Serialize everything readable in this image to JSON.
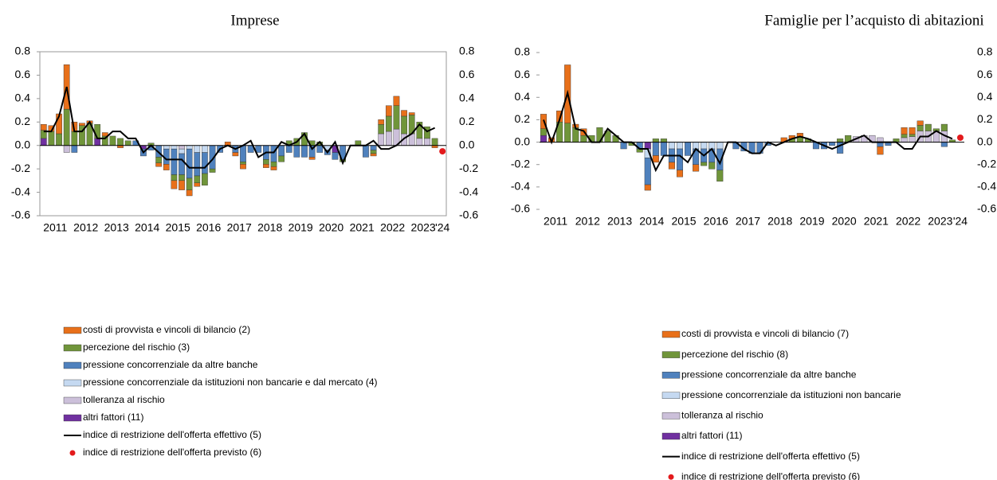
{
  "chart_data": [
    {
      "type": "bar",
      "title": "Imprese",
      "categories": [
        "2011",
        null,
        null,
        null,
        "2012",
        null,
        null,
        null,
        "2013",
        null,
        null,
        null,
        "2014",
        null,
        null,
        null,
        "2015",
        null,
        null,
        null,
        "2016",
        null,
        null,
        null,
        "2017",
        null,
        null,
        null,
        "2018",
        null,
        null,
        null,
        "2019",
        null,
        null,
        null,
        "2020",
        null,
        null,
        null,
        "2021",
        null,
        null,
        null,
        "2022",
        null,
        null,
        null,
        "2023",
        null,
        null,
        null,
        "'24"
      ],
      "ylim": [
        -0.6,
        0.8
      ],
      "yticks": [
        -0.6,
        -0.4,
        -0.2,
        {
          "value": 0,
          "label": "0.0"
        },
        0.2,
        0.4,
        0.6,
        0.8
      ],
      "series": [
        {
          "name": "costi di provvista e vincoli di bilancio (2)",
          "color": "#e8701a",
          "values": [
            0.05,
            0.05,
            0.17,
            0.38,
            0.08,
            0.02,
            0.02,
            0,
            0.03,
            0,
            -0.02,
            0,
            0,
            0,
            0,
            -0.03,
            -0.05,
            -0.07,
            -0.08,
            -0.05,
            -0.03,
            0,
            0,
            0,
            0.03,
            -0.03,
            -0.04,
            0,
            0,
            -0.03,
            -0.03,
            0,
            0,
            0,
            0,
            -0.02,
            0,
            0,
            0,
            0,
            0,
            0,
            0,
            -0.02,
            0.04,
            0.09,
            0.08,
            0.05,
            0.02,
            0,
            0,
            -0.02,
            0
          ]
        },
        {
          "name": "percezione del rischio (3)",
          "color": "#70953a",
          "values": [
            0.07,
            0.12,
            0.1,
            0.31,
            0.12,
            0.17,
            0.19,
            0.12,
            0.08,
            0.08,
            0.06,
            0.04,
            0,
            0,
            0.02,
            -0.05,
            0,
            -0.05,
            -0.05,
            -0.1,
            -0.06,
            -0.1,
            -0.03,
            0,
            0,
            0,
            -0.02,
            0,
            0,
            -0.04,
            -0.04,
            -0.05,
            0.04,
            0.06,
            0.11,
            0.04,
            0.03,
            0,
            0,
            -0.02,
            0,
            0.04,
            0,
            -0.03,
            0.08,
            0.13,
            0.2,
            0.15,
            0.16,
            0.14,
            0.1,
            0.06,
            0
          ]
        },
        {
          "name": "pressione concorrenziale da altre banche",
          "color": "#4f81bd",
          "values": [
            0,
            0,
            0,
            0,
            -0.06,
            0,
            0,
            0,
            0,
            0,
            0,
            0,
            0.04,
            -0.06,
            -0.04,
            -0.1,
            -0.13,
            -0.22,
            -0.18,
            -0.25,
            -0.2,
            -0.18,
            -0.2,
            -0.06,
            0,
            -0.06,
            -0.14,
            -0.06,
            -0.06,
            -0.12,
            -0.14,
            -0.09,
            -0.06,
            -0.1,
            -0.1,
            -0.1,
            -0.06,
            -0.04,
            -0.06,
            -0.12,
            0,
            0,
            -0.1,
            -0.04,
            0,
            0,
            0,
            0,
            0,
            0,
            0,
            0,
            0
          ]
        },
        {
          "name": "pressione concorrenziale da istituzioni non bancarie e dal mercato (4)",
          "color": "#c5d9f1",
          "values": [
            0,
            0,
            0,
            0,
            0,
            0,
            0,
            0,
            0,
            0,
            0,
            0,
            0,
            0,
            0,
            0,
            -0.03,
            -0.03,
            -0.04,
            -0.03,
            -0.06,
            -0.06,
            0,
            0,
            0,
            0,
            0,
            0,
            0,
            0,
            0,
            0,
            0,
            0,
            0,
            0,
            0,
            -0.04,
            0,
            0,
            0,
            0,
            0,
            0,
            0,
            0,
            0,
            0,
            0,
            0,
            0,
            0,
            0
          ]
        },
        {
          "name": "tolleranza al rischio",
          "color": "#ccc0da",
          "values": [
            0,
            0,
            0,
            -0.06,
            0,
            0,
            0,
            0,
            0,
            0,
            0,
            0,
            0,
            0,
            0,
            0,
            0,
            0,
            -0.03,
            0,
            0,
            0,
            0,
            0,
            0,
            0,
            0,
            0,
            0,
            0,
            0,
            0,
            0,
            0,
            0,
            0,
            0,
            0,
            0,
            0,
            0,
            0,
            0,
            0,
            0.1,
            0.12,
            0.14,
            0.1,
            0.1,
            0.06,
            0.06,
            0,
            0
          ]
        },
        {
          "name": "altri fattori (11)",
          "color": "#7030a0",
          "values": [
            0.06,
            0,
            0,
            0,
            0,
            0,
            0,
            0.06,
            0,
            0,
            0,
            0,
            0,
            -0.03,
            0,
            0,
            0,
            0,
            0,
            0,
            0,
            0,
            0,
            0,
            0,
            0,
            0,
            0,
            0,
            0,
            0,
            0,
            0,
            0,
            0,
            0,
            0,
            0,
            -0.06,
            0,
            0,
            0,
            0,
            0,
            0,
            0,
            0,
            0,
            0,
            0,
            0,
            0,
            0
          ]
        },
        {
          "type": "line",
          "name": "indice di restrizione dell'offerta effettivo (5)",
          "color": "#000000",
          "values": [
            0.12,
            0.12,
            0.25,
            0.5,
            0.12,
            0.12,
            0.2,
            0.06,
            0.06,
            0.12,
            0.12,
            0.06,
            0.06,
            -0.06,
            0,
            -0.06,
            -0.12,
            -0.12,
            -0.12,
            -0.19,
            -0.19,
            -0.19,
            -0.12,
            -0.03,
            0,
            -0.03,
            0,
            0.04,
            -0.1,
            -0.06,
            -0.06,
            0.03,
            0,
            0.03,
            0.1,
            -0.03,
            0.03,
            -0.06,
            0.03,
            -0.15,
            0,
            0,
            0,
            0.04,
            -0.03,
            -0.03,
            0,
            0.06,
            0.1,
            0.18,
            0.12,
            0.15,
            null
          ]
        }
      ],
      "forecast": {
        "name": "indice di restrizione dell'offerta previsto (6)",
        "color": "#e31a1c",
        "x": "'24",
        "value": -0.05
      }
    },
    {
      "type": "bar",
      "title": "Famiglie per l’acquisto di abitazioni",
      "categories": [
        "2011",
        null,
        null,
        null,
        "2012",
        null,
        null,
        null,
        "2013",
        null,
        null,
        null,
        "2014",
        null,
        null,
        null,
        "2015",
        null,
        null,
        null,
        "2016",
        null,
        null,
        null,
        "2017",
        null,
        null,
        null,
        "2018",
        null,
        null,
        null,
        "2019",
        null,
        null,
        null,
        "2020",
        null,
        null,
        null,
        "2021",
        null,
        null,
        null,
        "2022",
        null,
        null,
        null,
        "2023",
        null,
        null,
        null,
        "'24"
      ],
      "ylim": [
        -0.6,
        0.8
      ],
      "yticks": [
        -0.6,
        -0.4,
        -0.2,
        {
          "value": 0,
          "label": "0.0"
        },
        0.2,
        0.4,
        0.6,
        0.8
      ],
      "series": [
        {
          "name": "costi di provvista e vincoli di bilancio (7)",
          "color": "#e8701a",
          "values": [
            0.13,
            0.04,
            0.1,
            0.52,
            0.03,
            0.06,
            0,
            0,
            0,
            0,
            0,
            0,
            0,
            -0.05,
            -0.06,
            0,
            -0.06,
            -0.06,
            0,
            -0.06,
            0,
            0,
            0,
            0,
            0,
            0,
            0,
            0,
            0,
            0,
            0.04,
            0.03,
            0.03,
            0,
            0,
            0,
            0,
            0,
            0,
            0,
            0,
            0,
            -0.07,
            0,
            0,
            0.06,
            0.06,
            0.04,
            0,
            0,
            0,
            0,
            0
          ]
        },
        {
          "name": "percezione del rischio (8)",
          "color": "#70953a",
          "values": [
            0.06,
            0,
            0.18,
            0.17,
            0.13,
            0.06,
            0.06,
            0.13,
            0.1,
            0.06,
            0,
            -0.03,
            -0.03,
            0,
            0.03,
            0.03,
            0,
            0,
            0,
            0,
            -0.03,
            -0.06,
            -0.1,
            0,
            0,
            0,
            0,
            0,
            0,
            0,
            0,
            0.03,
            0.05,
            0.03,
            0,
            0,
            0,
            0.03,
            0.06,
            0,
            0,
            0,
            0,
            0,
            0.03,
            0.03,
            0.02,
            0.05,
            0.06,
            0.02,
            0.06,
            0.02,
            0
          ]
        },
        {
          "name": "pressione concorrenziale da altre banche",
          "color": "#4f81bd",
          "values": [
            0,
            0,
            0,
            0,
            0,
            0,
            0,
            0,
            0,
            0,
            -0.06,
            0,
            -0.06,
            -0.24,
            -0.12,
            -0.12,
            -0.12,
            -0.19,
            -0.12,
            -0.14,
            -0.12,
            -0.12,
            -0.19,
            0,
            -0.06,
            -0.08,
            -0.1,
            -0.1,
            -0.03,
            0,
            0,
            0,
            0,
            0,
            -0.06,
            -0.06,
            -0.03,
            -0.1,
            0,
            0,
            0,
            0,
            -0.04,
            -0.03,
            0,
            0,
            0,
            0,
            0,
            0,
            -0.04,
            0,
            0
          ]
        },
        {
          "name": "pressione concorrenziale da istituzioni non bancarie",
          "color": "#c5d9f1",
          "values": [
            0,
            0,
            0,
            0,
            0,
            0,
            0,
            0,
            0,
            0,
            0,
            0,
            0,
            -0.08,
            0,
            0,
            -0.06,
            -0.06,
            0,
            -0.06,
            -0.06,
            -0.06,
            -0.06,
            0,
            0,
            0,
            0,
            0,
            0,
            0,
            0,
            0,
            0,
            0,
            0,
            0,
            0,
            0,
            0,
            0,
            0,
            0,
            0,
            0,
            0,
            0,
            0,
            0,
            0,
            0,
            0,
            0,
            0
          ]
        },
        {
          "name": "tolleranza al rischio",
          "color": "#ccc0da",
          "values": [
            0,
            0,
            0,
            0,
            0,
            0,
            0,
            0,
            0,
            0,
            0,
            0,
            0,
            0,
            0,
            0,
            0,
            0,
            0,
            0,
            0,
            0,
            0,
            0,
            0,
            0,
            0,
            0,
            0,
            0,
            0,
            0,
            0,
            0,
            0,
            0,
            0,
            0,
            0,
            0.05,
            0.06,
            0.06,
            0.04,
            0,
            0,
            0.04,
            0.05,
            0.1,
            0.1,
            0.1,
            0.1,
            0,
            0
          ]
        },
        {
          "name": "altri fattori (11)",
          "color": "#7030a0",
          "values": [
            0.06,
            0,
            0,
            0,
            0,
            0,
            0,
            0,
            0,
            0,
            0,
            0,
            0,
            -0.06,
            0,
            0,
            0,
            0,
            0,
            0,
            0,
            0,
            0,
            0,
            0,
            0,
            0,
            0,
            0,
            0,
            0,
            0,
            0,
            0,
            0,
            0,
            0,
            0,
            0,
            0,
            0,
            0,
            0,
            0,
            0,
            0,
            0,
            0,
            0,
            0,
            0,
            0,
            0
          ]
        },
        {
          "type": "line",
          "name": "indice di restrizione dell'offerta effettivo (5)",
          "color": "#000000",
          "values": [
            0.2,
            0,
            0.2,
            0.44,
            0.12,
            0.1,
            0,
            0,
            0.12,
            0.06,
            0,
            0,
            -0.06,
            -0.06,
            -0.25,
            -0.12,
            -0.12,
            -0.12,
            -0.18,
            -0.06,
            -0.12,
            -0.06,
            -0.19,
            0,
            0,
            -0.06,
            -0.1,
            -0.1,
            0,
            -0.03,
            0,
            0.03,
            0.05,
            0.03,
            0,
            -0.03,
            -0.06,
            -0.03,
            0,
            0.03,
            0.06,
            0,
            0,
            0,
            0,
            -0.06,
            -0.06,
            0.05,
            0.05,
            0.1,
            0.06,
            0.03,
            null
          ]
        }
      ],
      "forecast": {
        "name": "indice di restrizione dell'offerta previsto (6)",
        "color": "#e31a1c",
        "x": "'24",
        "value": 0.04
      }
    }
  ]
}
